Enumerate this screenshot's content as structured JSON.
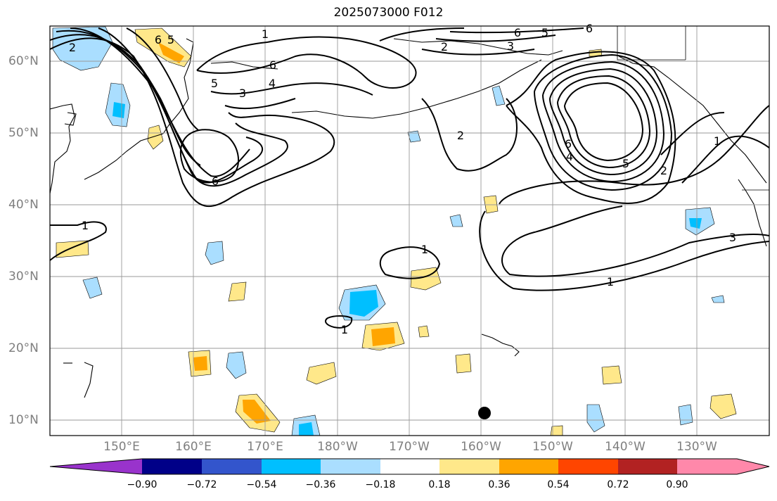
{
  "title": "2025073000 F012",
  "map": {
    "lat_labels": [
      "60°N",
      "50°N",
      "40°N",
      "30°N",
      "20°N",
      "10°N"
    ],
    "lon_labels": [
      "150°E",
      "160°E",
      "170°E",
      "180°W",
      "170°W",
      "160°W",
      "150°W",
      "140°W",
      "130°W"
    ],
    "marker": "black-dot"
  },
  "contours": {
    "labels": [
      "1",
      "2",
      "3",
      "4",
      "5",
      "6"
    ],
    "color": "#000000"
  },
  "colorbar": {
    "ticks": [
      "−0.90",
      "−0.72",
      "−0.54",
      "−0.36",
      "−0.18",
      "0.18",
      "0.36",
      "0.54",
      "0.72",
      "0.90"
    ],
    "colors": [
      "#9933cc",
      "#000088",
      "#3355cc",
      "#00bfff",
      "#aadeff",
      "#ffffff",
      "#ffe88a",
      "#ffa500",
      "#ff4500",
      "#b22222",
      "#ff88aa"
    ]
  }
}
